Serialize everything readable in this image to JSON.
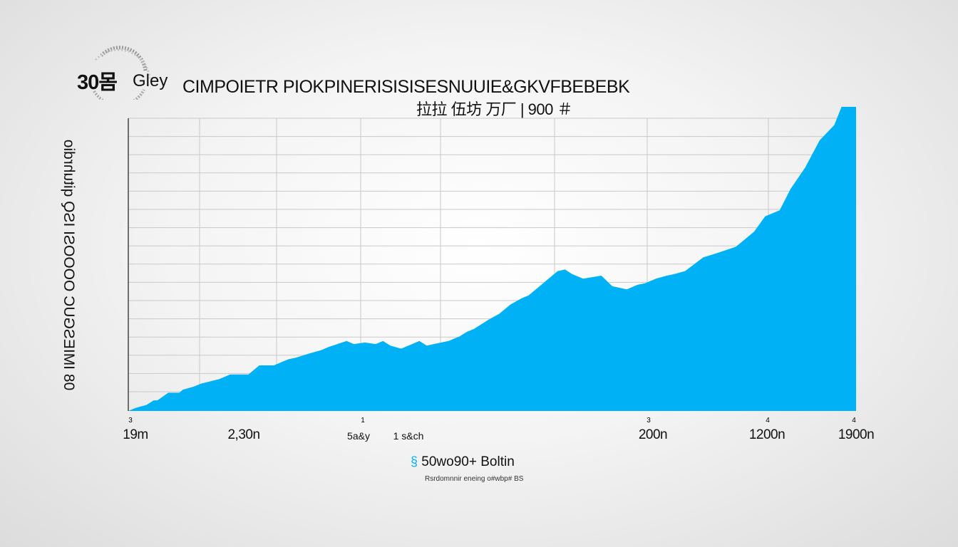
{
  "header": {
    "logo_text": "30",
    "logo_glyph": "몸",
    "brand": "Gley",
    "title": "CIMPOIETR PIOKPINERISISISESNUUIE&GKVFBEBEBK",
    "subtitle": "拉拉 伍坊 万厂 | 900 ＃"
  },
  "colors": {
    "area": "#00b2f5",
    "grid": "#c9c9c9",
    "axis": "#444444"
  },
  "chart_data": {
    "type": "area",
    "title": "CIMPOIETR PIOKPINERISISISESNUUIE&GKVFBEBEBK",
    "ylabel": "08 IMIESGUC OOOOSI ISQ qituhrdio",
    "xlabel": "50wo90+ Boltin",
    "note": "Rsrdomnnir eneing o#wbp# BS",
    "x_ticks": [
      "19m",
      "2,30n",
      "5a&y",
      "1 s&ch",
      "200n",
      "1200n",
      "1900n"
    ],
    "x_tick_marks": [
      "3",
      "1",
      "3",
      "4",
      "4"
    ],
    "x": [
      0,
      2,
      5,
      7,
      8,
      11,
      14,
      15,
      18,
      20,
      25,
      28,
      33,
      36,
      40,
      44,
      46,
      50,
      53,
      55,
      60,
      62,
      65,
      68,
      70,
      72,
      75,
      80,
      82,
      86,
      88,
      91,
      93,
      95,
      99,
      102,
      105,
      108,
      110,
      112,
      115,
      118,
      120,
      122,
      125,
      130,
      133,
      137,
      140,
      142,
      145,
      148,
      150,
      153,
      158,
      162,
      167,
      172,
      175,
      179,
      182,
      186,
      190,
      194,
      196,
      198,
      200
    ],
    "values": [
      0,
      2,
      4,
      7,
      7,
      12,
      12,
      14,
      16,
      18,
      21,
      24,
      24,
      30,
      30,
      34,
      35,
      38,
      40,
      42,
      46,
      44,
      45,
      44,
      46,
      43,
      41,
      46,
      43,
      45,
      46,
      49,
      52,
      54,
      60,
      64,
      70,
      74,
      76,
      80,
      86,
      92,
      93,
      90,
      87,
      89,
      82,
      80,
      83,
      84,
      87,
      89,
      90,
      92,
      101,
      104,
      108,
      118,
      128,
      132,
      146,
      160,
      178,
      188,
      200,
      200,
      200
    ],
    "xlim": [
      0,
      200
    ],
    "ylim": [
      0,
      200
    ],
    "grid": true
  }
}
